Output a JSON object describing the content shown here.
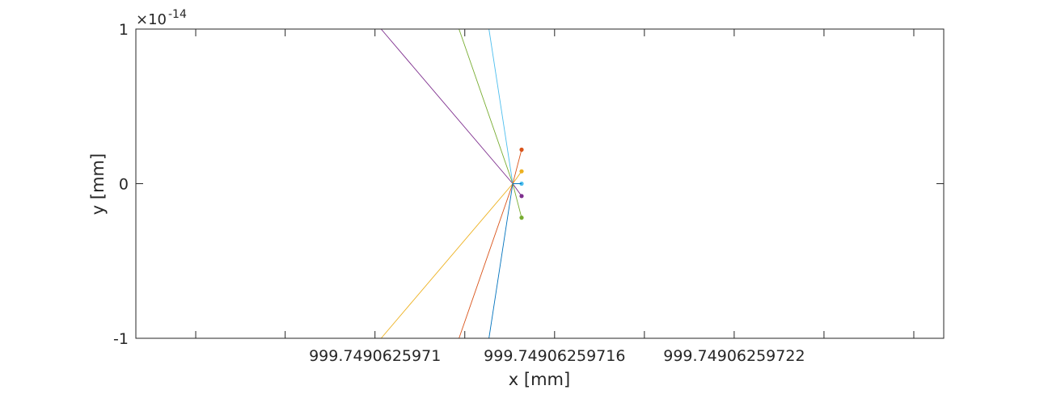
{
  "chart_data": {
    "type": "line",
    "xlabel": "x [mm]",
    "ylabel": "y [mm]",
    "y_exponent": {
      "base": "×10",
      "power": "-14"
    },
    "xlim": [
      999.74906259702,
      999.74906259729
    ],
    "ylim": [
      -1,
      1
    ],
    "xticks": [
      999.74906259704,
      999.74906259707,
      999.7490625971,
      999.74906259713,
      999.74906259716,
      999.74906259719,
      999.74906259722,
      999.74906259725,
      999.74906259728
    ],
    "xtick_labels": [
      {
        "value": 999.7490625971,
        "label": "999.7490625971"
      },
      {
        "value": 999.74906259716,
        "label": "999.74906259716"
      },
      {
        "value": 999.74906259722,
        "label": "999.74906259722"
      }
    ],
    "yticks": [
      {
        "value": 1,
        "label": "1"
      },
      {
        "value": 0,
        "label": "0"
      },
      {
        "value": -1,
        "label": "-1"
      }
    ],
    "grid": false,
    "box": true,
    "series": [
      {
        "color": "#7e2f8e",
        "x": [
          999.749062597102,
          999.749062597146,
          999.749062597149
        ],
        "y": [
          1,
          0,
          -0.08
        ],
        "marker_end": true
      },
      {
        "color": "#77ac30",
        "x": [
          999.749062597128,
          999.749062597146,
          999.749062597149
        ],
        "y": [
          1,
          0,
          -0.22
        ],
        "marker_end": true
      },
      {
        "color": "#4dbeee",
        "x": [
          999.749062597138,
          999.749062597146,
          999.749062597149
        ],
        "y": [
          1,
          0,
          0
        ],
        "marker_end": true
      },
      {
        "color": "#edb120",
        "x": [
          999.749062597102,
          999.749062597146,
          999.749062597149
        ],
        "y": [
          -1,
          0,
          0.08
        ],
        "marker_end": true
      },
      {
        "color": "#d95319",
        "x": [
          999.749062597128,
          999.749062597146,
          999.749062597149
        ],
        "y": [
          -1,
          0,
          0.22
        ],
        "marker_end": true
      },
      {
        "color": "#0072bd",
        "x": [
          999.749062597138,
          999.749062597146,
          999.749062597149
        ],
        "y": [
          -1,
          0,
          0
        ],
        "marker_end": false
      }
    ]
  }
}
